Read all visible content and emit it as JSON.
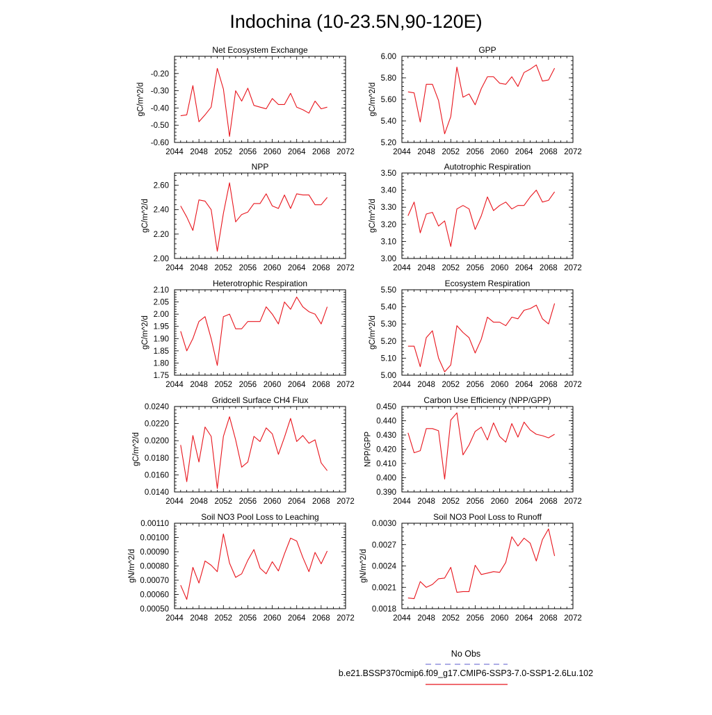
{
  "page_title": "Indochina (10-23.5N,90-120E)",
  "colors": {
    "series": "#e8141c",
    "axis": "#000000",
    "obs": "#7a7ad8"
  },
  "legend": {
    "obs_label": "No Obs",
    "model_label": "b.e21.BSSP370cmip6.f09_g17.CMIP6-SSP3-7.0-SSP1-2.6Lu.102"
  },
  "x_ticks": [
    "2044",
    "2048",
    "2052",
    "2056",
    "2060",
    "2064",
    "2068",
    "2072"
  ],
  "chart_data": [
    {
      "type": "line",
      "title": "Net Ecosystem Exchange",
      "ylabel": "gC/m^2/d",
      "xlim": [
        2044,
        2072
      ],
      "ylim": [
        -0.6,
        -0.1
      ],
      "yticks": [
        "-0.60",
        "-0.50",
        "-0.40",
        "-0.30",
        "-0.20"
      ],
      "x": [
        2045,
        2046,
        2047,
        2048,
        2049,
        2050,
        2051,
        2052,
        2053,
        2054,
        2055,
        2056,
        2057,
        2058,
        2059,
        2060,
        2061,
        2062,
        2063,
        2064,
        2065,
        2066,
        2067,
        2068,
        2069
      ],
      "values": [
        -0.445,
        -0.44,
        -0.27,
        -0.48,
        -0.44,
        -0.395,
        -0.17,
        -0.29,
        -0.565,
        -0.3,
        -0.36,
        -0.285,
        -0.385,
        -0.395,
        -0.405,
        -0.345,
        -0.38,
        -0.38,
        -0.315,
        -0.395,
        -0.41,
        -0.43,
        -0.36,
        -0.405,
        -0.395
      ]
    },
    {
      "type": "line",
      "title": "GPP",
      "ylabel": "gC/m^2/d",
      "xlim": [
        2044,
        2072
      ],
      "ylim": [
        5.2,
        6.0
      ],
      "yticks": [
        "5.20",
        "5.40",
        "5.60",
        "5.80",
        "6.00"
      ],
      "x": [
        2045,
        2046,
        2047,
        2048,
        2049,
        2050,
        2051,
        2052,
        2053,
        2054,
        2055,
        2056,
        2057,
        2058,
        2059,
        2060,
        2061,
        2062,
        2063,
        2064,
        2065,
        2066,
        2067,
        2068,
        2069
      ],
      "values": [
        5.67,
        5.66,
        5.39,
        5.74,
        5.74,
        5.59,
        5.28,
        5.44,
        5.9,
        5.62,
        5.65,
        5.55,
        5.7,
        5.81,
        5.81,
        5.75,
        5.74,
        5.81,
        5.72,
        5.85,
        5.88,
        5.92,
        5.77,
        5.78,
        5.89
      ]
    },
    {
      "type": "line",
      "title": "NPP",
      "ylabel": "gC/m^2/d",
      "xlim": [
        2044,
        2072
      ],
      "ylim": [
        2.0,
        2.7
      ],
      "yticks": [
        "2.00",
        "2.20",
        "2.40",
        "2.60"
      ],
      "x": [
        2045,
        2046,
        2047,
        2048,
        2049,
        2050,
        2051,
        2052,
        2053,
        2054,
        2055,
        2056,
        2057,
        2058,
        2059,
        2060,
        2061,
        2062,
        2063,
        2064,
        2065,
        2066,
        2067,
        2068,
        2069
      ],
      "values": [
        2.43,
        2.34,
        2.23,
        2.48,
        2.47,
        2.4,
        2.06,
        2.37,
        2.62,
        2.3,
        2.36,
        2.38,
        2.45,
        2.45,
        2.53,
        2.43,
        2.41,
        2.52,
        2.41,
        2.53,
        2.52,
        2.52,
        2.44,
        2.44,
        2.5
      ]
    },
    {
      "type": "line",
      "title": "Autotrophic Respiration",
      "ylabel": "gC/m^2/d",
      "xlim": [
        2044,
        2072
      ],
      "ylim": [
        3.0,
        3.5
      ],
      "yticks": [
        "3.00",
        "3.10",
        "3.20",
        "3.30",
        "3.40",
        "3.50"
      ],
      "x": [
        2045,
        2046,
        2047,
        2048,
        2049,
        2050,
        2051,
        2052,
        2053,
        2054,
        2055,
        2056,
        2057,
        2058,
        2059,
        2060,
        2061,
        2062,
        2063,
        2064,
        2065,
        2066,
        2067,
        2068,
        2069
      ],
      "values": [
        3.25,
        3.33,
        3.15,
        3.26,
        3.27,
        3.19,
        3.22,
        3.07,
        3.29,
        3.31,
        3.29,
        3.17,
        3.25,
        3.36,
        3.28,
        3.31,
        3.33,
        3.29,
        3.31,
        3.31,
        3.36,
        3.4,
        3.33,
        3.34,
        3.39
      ]
    },
    {
      "type": "line",
      "title": "Heterotrophic Respiration",
      "ylabel": "gC/m^2/d",
      "xlim": [
        2044,
        2072
      ],
      "ylim": [
        1.75,
        2.1
      ],
      "yticks": [
        "1.75",
        "1.80",
        "1.85",
        "1.90",
        "1.95",
        "2.00",
        "2.05",
        "2.10"
      ],
      "x": [
        2045,
        2046,
        2047,
        2048,
        2049,
        2050,
        2051,
        2052,
        2053,
        2054,
        2055,
        2056,
        2057,
        2058,
        2059,
        2060,
        2061,
        2062,
        2063,
        2064,
        2065,
        2066,
        2067,
        2068,
        2069
      ],
      "values": [
        1.93,
        1.85,
        1.9,
        1.97,
        1.99,
        1.9,
        1.79,
        1.99,
        2.0,
        1.94,
        1.94,
        1.97,
        1.97,
        1.97,
        2.03,
        2.0,
        1.96,
        2.05,
        2.02,
        2.07,
        2.03,
        2.01,
        2.0,
        1.96,
        2.03
      ]
    },
    {
      "type": "line",
      "title": "Ecosystem Respiration",
      "ylabel": "gC/m^2/d",
      "xlim": [
        2044,
        2072
      ],
      "ylim": [
        5.0,
        5.5
      ],
      "yticks": [
        "5.00",
        "5.10",
        "5.20",
        "5.30",
        "5.40",
        "5.50"
      ],
      "x": [
        2045,
        2046,
        2047,
        2048,
        2049,
        2050,
        2051,
        2052,
        2053,
        2054,
        2055,
        2056,
        2057,
        2058,
        2059,
        2060,
        2061,
        2062,
        2063,
        2064,
        2065,
        2066,
        2067,
        2068,
        2069
      ],
      "values": [
        5.17,
        5.17,
        5.05,
        5.22,
        5.26,
        5.1,
        5.02,
        5.06,
        5.29,
        5.25,
        5.22,
        5.13,
        5.21,
        5.34,
        5.31,
        5.31,
        5.29,
        5.34,
        5.33,
        5.38,
        5.39,
        5.41,
        5.33,
        5.3,
        5.42
      ]
    },
    {
      "type": "line",
      "title": "Gridcell Surface CH4 Flux",
      "ylabel": "gC/m^2/d",
      "xlim": [
        2044,
        2072
      ],
      "ylim": [
        0.014,
        0.024
      ],
      "yticks": [
        "0.0140",
        "0.0160",
        "0.0180",
        "0.0200",
        "0.0220",
        "0.0240"
      ],
      "x": [
        2045,
        2046,
        2047,
        2048,
        2049,
        2050,
        2051,
        2052,
        2053,
        2054,
        2055,
        2056,
        2057,
        2058,
        2059,
        2060,
        2061,
        2062,
        2063,
        2064,
        2065,
        2066,
        2067,
        2068,
        2069
      ],
      "values": [
        0.0195,
        0.0152,
        0.0206,
        0.0175,
        0.0216,
        0.0205,
        0.0144,
        0.0205,
        0.0228,
        0.0201,
        0.0169,
        0.0175,
        0.0205,
        0.0199,
        0.0215,
        0.0208,
        0.0184,
        0.0204,
        0.0226,
        0.0199,
        0.0206,
        0.0197,
        0.0201,
        0.0174,
        0.0165
      ]
    },
    {
      "type": "line",
      "title": "Carbon Use Efficiency (NPP/GPP)",
      "ylabel": "NPP/GPP",
      "xlim": [
        2044,
        2072
      ],
      "ylim": [
        0.39,
        0.45
      ],
      "yticks": [
        "0.390",
        "0.400",
        "0.410",
        "0.420",
        "0.430",
        "0.440",
        "0.450"
      ],
      "x": [
        2045,
        2046,
        2047,
        2048,
        2049,
        2050,
        2051,
        2052,
        2053,
        2054,
        2055,
        2056,
        2057,
        2058,
        2059,
        2060,
        2061,
        2062,
        2063,
        2064,
        2065,
        2066,
        2067,
        2068,
        2069
      ],
      "values": [
        0.4315,
        0.4175,
        0.419,
        0.4345,
        0.4345,
        0.433,
        0.399,
        0.4405,
        0.4455,
        0.416,
        0.423,
        0.4325,
        0.4355,
        0.4265,
        0.4385,
        0.429,
        0.425,
        0.438,
        0.4285,
        0.439,
        0.4335,
        0.4305,
        0.4295,
        0.428,
        0.4305
      ]
    },
    {
      "type": "line",
      "title": "Soil NO3 Pool Loss to Leaching",
      "ylabel": "gN/m^2/d",
      "xlim": [
        2044,
        2072
      ],
      "ylim": [
        0.0005,
        0.0011
      ],
      "yticks": [
        "0.00050",
        "0.00060",
        "0.00070",
        "0.00080",
        "0.00090",
        "0.00100",
        "0.00110"
      ],
      "x": [
        2045,
        2046,
        2047,
        2048,
        2049,
        2050,
        2051,
        2052,
        2053,
        2054,
        2055,
        2056,
        2057,
        2058,
        2059,
        2060,
        2061,
        2062,
        2063,
        2064,
        2065,
        2066,
        2067,
        2068,
        2069
      ],
      "values": [
        0.000665,
        0.000565,
        0.00079,
        0.00068,
        0.000835,
        0.000805,
        0.00076,
        0.001025,
        0.00082,
        0.00072,
        0.000745,
        0.00084,
        0.000915,
        0.000785,
        0.000745,
        0.00083,
        0.000765,
        0.000885,
        0.000995,
        0.000975,
        0.00086,
        0.00076,
        0.000895,
        0.000815,
        0.000905
      ]
    },
    {
      "type": "line",
      "title": "Soil NO3 Pool Loss to Runoff",
      "ylabel": "gN/m^2/d",
      "xlim": [
        2044,
        2072
      ],
      "ylim": [
        0.0018,
        0.003
      ],
      "yticks": [
        "0.0018",
        "0.0021",
        "0.0024",
        "0.0027",
        "0.0030"
      ],
      "x": [
        2045,
        2046,
        2047,
        2048,
        2049,
        2050,
        2051,
        2052,
        2053,
        2054,
        2055,
        2056,
        2057,
        2058,
        2059,
        2060,
        2061,
        2062,
        2063,
        2064,
        2065,
        2066,
        2067,
        2068,
        2069
      ],
      "values": [
        0.00195,
        0.00194,
        0.00218,
        0.0021,
        0.00214,
        0.00222,
        0.00223,
        0.00238,
        0.00203,
        0.00204,
        0.00204,
        0.00241,
        0.00228,
        0.0023,
        0.00232,
        0.00231,
        0.00245,
        0.00281,
        0.00268,
        0.00279,
        0.00272,
        0.00247,
        0.00277,
        0.00292,
        0.00254
      ]
    }
  ]
}
